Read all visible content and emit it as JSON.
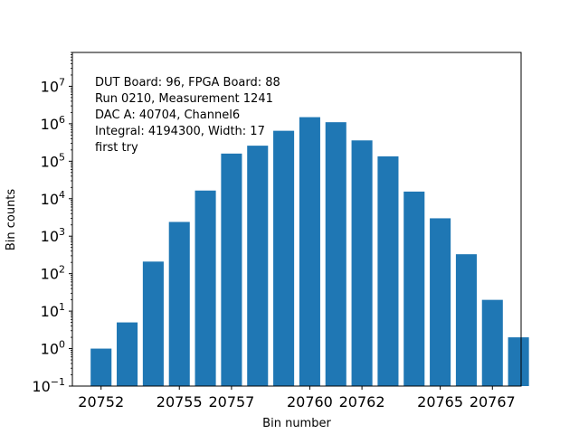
{
  "chart_data": {
    "type": "bar",
    "x": [
      20752,
      20753,
      20754,
      20755,
      20756,
      20757,
      20758,
      20759,
      20760,
      20761,
      20762,
      20763,
      20764,
      20765,
      20766,
      20767,
      20768
    ],
    "values": [
      1,
      5,
      210,
      2400,
      16500,
      160000,
      260000,
      650000,
      1500000,
      1100000,
      360000,
      135000,
      15500,
      3000,
      330,
      20,
      2
    ],
    "xticks": [
      20752,
      20755,
      20757,
      20760,
      20762,
      20765,
      20767
    ],
    "xtick_labels": [
      "20752",
      "20755",
      "20757",
      "20760",
      "20762",
      "20765",
      "20767"
    ],
    "xlim": [
      20750.9,
      20768.1
    ],
    "yscale": "log",
    "ylim": [
      0.1,
      80000000
    ],
    "ytick_exponents": [
      -1,
      0,
      1,
      2,
      3,
      4,
      5,
      6,
      7
    ],
    "ytick_base": "10",
    "xlabel": "Bin number",
    "ylabel": "Bin counts",
    "annotation_lines": [
      "DUT Board: 96, FPGA Board: 88",
      "Run 0210, Measurement 1241",
      "DAC A: 40704, Channel6",
      "Integral: 4194300, Width: 17",
      "first try"
    ],
    "bar_color": "#1f77b4",
    "grid": false,
    "legend": "none"
  }
}
